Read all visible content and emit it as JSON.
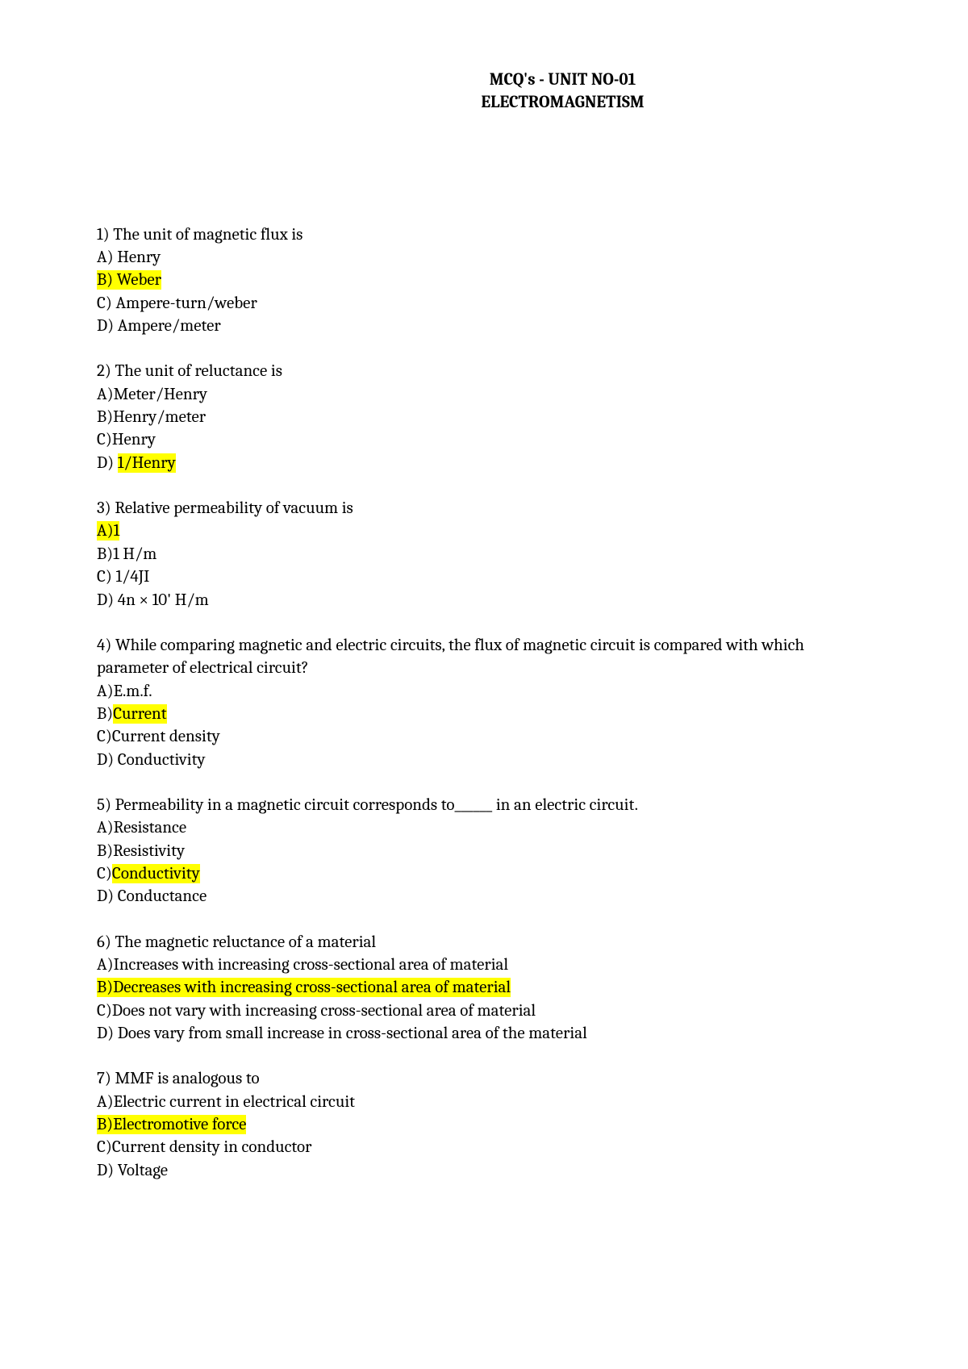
{
  "header": {
    "line1": "MCQ's  - UNIT NO-01",
    "line2": "ELECTROMAGNETISM"
  },
  "questions": [
    {
      "q": "1) The unit of magnetic flux is",
      "options": [
        {
          "text": "A) Henry",
          "highlighted": false
        },
        {
          "text": "B) Weber",
          "highlighted": true
        },
        {
          "text": "C) Ampere-turn/weber",
          "highlighted": false
        },
        {
          "text": "D) Ampere/meter",
          "highlighted": false
        }
      ]
    },
    {
      "q": "2) The unit of reluctance is",
      "options": [
        {
          "text": "A)Meter/Henry",
          "highlighted": false
        },
        {
          "text": "B)Henry/meter",
          "highlighted": false
        },
        {
          "text": "C)Henry",
          "highlighted": false
        },
        {
          "prefix": "D) ",
          "text": "1/Henry",
          "highlighted": true
        }
      ]
    },
    {
      "q": "3) Relative permeability of vacuum is",
      "options": [
        {
          "text": "A)1",
          "highlighted": true
        },
        {
          "text": "B)1 H/m",
          "highlighted": false
        },
        {
          "text": "C) 1/4JI",
          "highlighted": false
        },
        {
          "text": "D) 4n × 10' H/m",
          "highlighted": false
        }
      ]
    },
    {
      "q": "4) While comparing magnetic and electric circuits, the flux of magnetic circuit is compared with which parameter of electrical circuit?",
      "options": [
        {
          "text": "A)E.m.f.",
          "highlighted": false
        },
        {
          "prefix": "B)",
          "text": "Current",
          "highlighted": true
        },
        {
          "text": "C)Current density",
          "highlighted": false
        },
        {
          "text": "D) Conductivity",
          "highlighted": false
        }
      ]
    },
    {
      "q": "5) Permeability in a magnetic circuit corresponds to______ in an electric circuit.",
      "options": [
        {
          "text": "A)Resistance",
          "highlighted": false
        },
        {
          "text": "B)Resistivity",
          "highlighted": false
        },
        {
          "prefix": "C)",
          "text": "Conductivity",
          "highlighted": true
        },
        {
          "text": "D) Conductance",
          "highlighted": false
        }
      ]
    },
    {
      "q": "6) The magnetic reluctance of a material",
      "options": [
        {
          "text": "A)Increases with increasing cross-sectional area of material",
          "highlighted": false
        },
        {
          "text": "B)Decreases with increasing cross-sectional area of material",
          "highlighted": true
        },
        {
          "text": "C)Does not vary with increasing cross-sectional area of material",
          "highlighted": false
        },
        {
          "text": "D) Does vary from small increase in cross-sectional area of the material",
          "highlighted": false
        }
      ]
    },
    {
      "q": "7) MMF is analogous to",
      "options": [
        {
          "text": "A)Electric current in electrical circuit",
          "highlighted": false
        },
        {
          "text": "B)Electromotive force",
          "highlighted": true
        },
        {
          "text": "C)Current density in conductor",
          "highlighted": false
        },
        {
          "text": "D) Voltage",
          "highlighted": false
        }
      ]
    }
  ]
}
